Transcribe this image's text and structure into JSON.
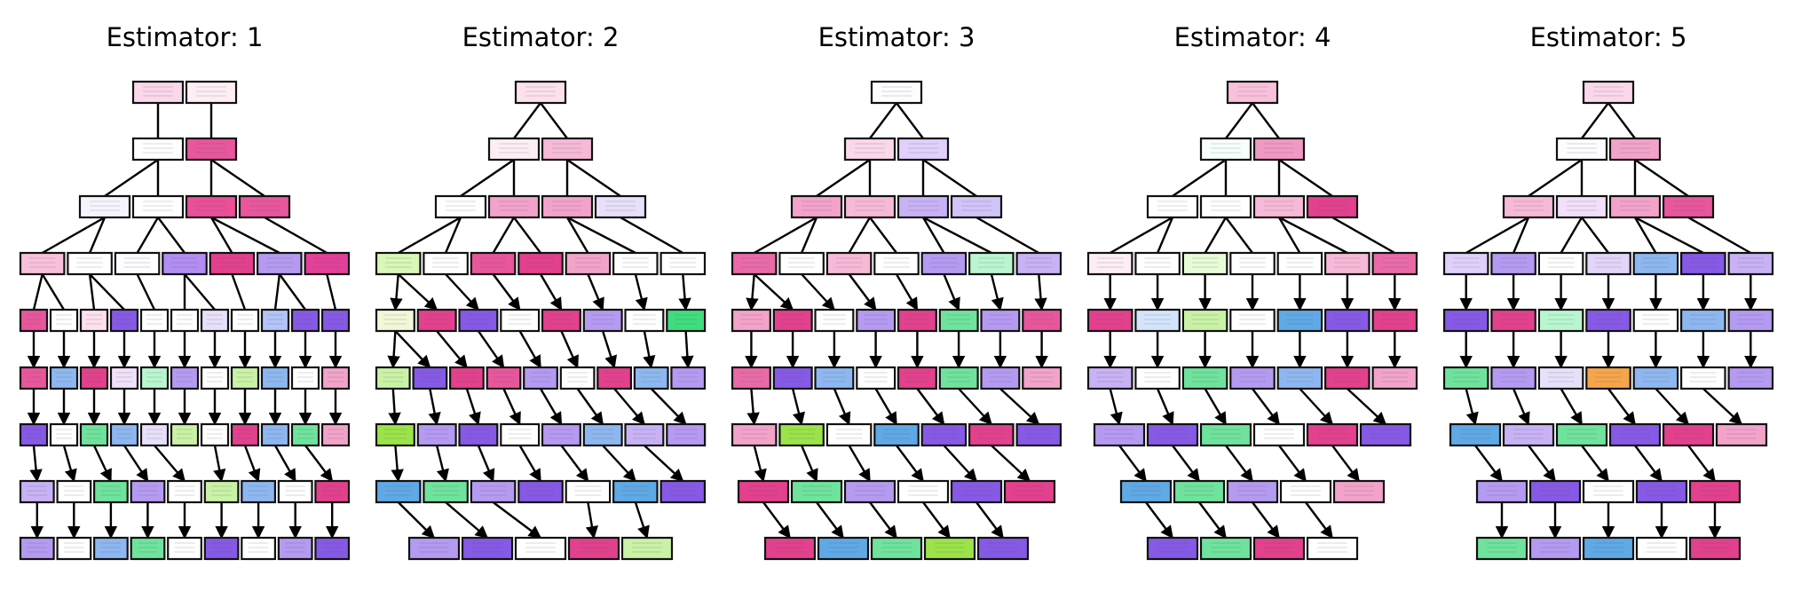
{
  "figure": {
    "panels": [
      {
        "title": "Estimator: 1",
        "levels": [
          {
            "nodes": [
              "#fad7ea",
              "#fdeef6"
            ],
            "edges": "lines"
          },
          {
            "nodes": [
              "#ffffff",
              "#e8569c"
            ],
            "edges": "lines"
          },
          {
            "nodes": [
              "#f7f4fd",
              "#ffffff",
              "#ea4f98",
              "#e8569c"
            ],
            "edges": "lines"
          },
          {
            "nodes": [
              "#f9c0dc",
              "#ffffff",
              "#fdfcff",
              "#b28df2",
              "#e3408e",
              "#b59af2",
              "#e3409a"
            ],
            "edges": "lines"
          },
          {
            "nodes": [
              "#e8569c",
              "#ffffff",
              "#fde0ee",
              "#8659e6",
              "#ffffff",
              "#ffffff",
              "#e8e0fb",
              "#ffffff",
              "#b2c4f8",
              "#8659e6",
              "#8659e6"
            ],
            "edges": "arrows"
          },
          {
            "nodes": [
              "#e8569c",
              "#8eb7f1",
              "#e3408e",
              "#f0e0fa",
              "#b9f6d0",
              "#b59af2",
              "#ffffff",
              "#c9f2a6",
              "#8eb7f1",
              "#ffffff",
              "#f3a3ca"
            ],
            "edges": "arrows"
          },
          {
            "nodes": [
              "#8659e6",
              "#ffffff",
              "#6fe39d",
              "#8eb7f1",
              "#e8e0fb",
              "#c9f2a6",
              "#ffffff",
              "#e3408e",
              "#8eb7f1",
              "#6fe39d",
              "#f3a3ca"
            ],
            "edges": "arrows"
          },
          {
            "nodes": [
              "#c8b2f5",
              "#ffffff",
              "#6fe39d",
              "#b59af2",
              "#ffffff",
              "#c9f2a6",
              "#8eb7f1",
              "#ffffff",
              "#e3408e"
            ],
            "edges": "arrows"
          },
          {
            "nodes": [
              "#b59af2",
              "#ffffff",
              "#8eb7f1",
              "#6fe39d",
              "#ffffff",
              "#8659e6",
              "#ffffff",
              "#b59af2",
              "#8659e6"
            ],
            "edges": "none"
          }
        ]
      },
      {
        "title": "Estimator: 2",
        "levels": [
          {
            "nodes": [
              "#fde0ee"
            ],
            "edges": "lines"
          },
          {
            "nodes": [
              "#fdeef6",
              "#f7b9d8"
            ],
            "edges": "lines"
          },
          {
            "nodes": [
              "#ffffff",
              "#f3a3ca",
              "#f3a3ca",
              "#e8e0fb"
            ],
            "edges": "lines"
          },
          {
            "nodes": [
              "#d9f7b7",
              "#ffffff",
              "#e8569c",
              "#e3408e",
              "#f3a3ca",
              "#ffffff",
              "#ffffff"
            ],
            "edges": "arrows"
          },
          {
            "nodes": [
              "#f0f8d8",
              "#e3408e",
              "#8659e6",
              "#ffffff",
              "#e3408e",
              "#b59af2",
              "#ffffff",
              "#3fdd7d"
            ],
            "edges": "arrows"
          },
          {
            "nodes": [
              "#c9f2a6",
              "#8659e6",
              "#e3408e",
              "#e8569c",
              "#b59af2",
              "#ffffff",
              "#e3408e",
              "#8eb7f1",
              "#b59af2"
            ],
            "edges": "arrows"
          },
          {
            "nodes": [
              "#9ce34a",
              "#b59af2",
              "#8659e6",
              "#ffffff",
              "#b59af2",
              "#8eb7f1",
              "#c8b2f5",
              "#b59af2"
            ],
            "edges": "arrows"
          },
          {
            "nodes": [
              "#5fa9e6",
              "#6fe39d",
              "#b59af2",
              "#8659e6",
              "#ffffff",
              "#5fa9e6",
              "#8659e6"
            ],
            "edges": "arrows"
          },
          {
            "nodes": [
              "#b59af2",
              "#8659e6",
              "#ffffff",
              "#e3408e",
              "#c9f2a6"
            ],
            "edges": "none"
          }
        ]
      },
      {
        "title": "Estimator: 3",
        "levels": [
          {
            "nodes": [
              "#fdfcff"
            ],
            "edges": "lines"
          },
          {
            "nodes": [
              "#fad7ea",
              "#e0d0fb"
            ],
            "edges": "lines"
          },
          {
            "nodes": [
              "#f3a3ca",
              "#f7b9d8",
              "#c8b2f5",
              "#d0c4f8"
            ],
            "edges": "lines"
          },
          {
            "nodes": [
              "#ea6aa8",
              "#ffffff",
              "#f7b9d8",
              "#ffffff",
              "#b59af2",
              "#b9f6d0",
              "#c8b2f5"
            ],
            "edges": "arrows"
          },
          {
            "nodes": [
              "#f3a3ca",
              "#e3408e",
              "#ffffff",
              "#b59af2",
              "#e3408e",
              "#6fe39d",
              "#b59af2",
              "#e8569c"
            ],
            "edges": "arrows"
          },
          {
            "nodes": [
              "#ea6aa8",
              "#8659e6",
              "#8eb7f1",
              "#ffffff",
              "#e3408e",
              "#6fe39d",
              "#b59af2",
              "#f3a3ca"
            ],
            "edges": "arrows"
          },
          {
            "nodes": [
              "#f3a3ca",
              "#9ce34a",
              "#ffffff",
              "#5fa9e6",
              "#8659e6",
              "#e3408e",
              "#8659e6"
            ],
            "edges": "arrows"
          },
          {
            "nodes": [
              "#e3408e",
              "#6fe39d",
              "#b59af2",
              "#ffffff",
              "#8659e6",
              "#e3408e"
            ],
            "edges": "arrows"
          },
          {
            "nodes": [
              "#e3408e",
              "#5fa9e6",
              "#6fe39d",
              "#9ce34a",
              "#8659e6"
            ],
            "edges": "none"
          }
        ]
      },
      {
        "title": "Estimator: 4",
        "levels": [
          {
            "nodes": [
              "#f9c0dc"
            ],
            "edges": "lines"
          },
          {
            "nodes": [
              "#f7fffb",
              "#f099c4"
            ],
            "edges": "lines"
          },
          {
            "nodes": [
              "#ffffff",
              "#ffffff",
              "#f7b9d8",
              "#e3408e"
            ],
            "edges": "lines"
          },
          {
            "nodes": [
              "#fdeef6",
              "#ffffff",
              "#e8fbd8",
              "#ffffff",
              "#ffffff",
              "#f7b9d8",
              "#ea6aa8"
            ],
            "edges": "arrows"
          },
          {
            "nodes": [
              "#e3408e",
              "#d4e5fb",
              "#c9f2a6",
              "#ffffff",
              "#5fa9e6",
              "#8659e6",
              "#e3408e"
            ],
            "edges": "arrows"
          },
          {
            "nodes": [
              "#c8b2f5",
              "#ffffff",
              "#6fe39d",
              "#b59af2",
              "#8eb7f1",
              "#e3408e",
              "#f3a3ca"
            ],
            "edges": "arrows"
          },
          {
            "nodes": [
              "#b59af2",
              "#8659e6",
              "#6fe39d",
              "#ffffff",
              "#e3408e",
              "#8659e6"
            ],
            "edges": "arrows"
          },
          {
            "nodes": [
              "#5fa9e6",
              "#6fe39d",
              "#b59af2",
              "#ffffff",
              "#f3a3ca"
            ],
            "edges": "arrows"
          },
          {
            "nodes": [
              "#8659e6",
              "#6fe39d",
              "#e3408e",
              "#ffffff"
            ],
            "edges": "none"
          }
        ]
      },
      {
        "title": "Estimator: 5",
        "levels": [
          {
            "nodes": [
              "#fad7ea"
            ],
            "edges": "lines"
          },
          {
            "nodes": [
              "#fdfcff",
              "#f3a3ca"
            ],
            "edges": "lines"
          },
          {
            "nodes": [
              "#f7b9d8",
              "#f0e0fa",
              "#f3a3ca",
              "#e8569c"
            ],
            "edges": "lines"
          },
          {
            "nodes": [
              "#e0d0fb",
              "#b59af2",
              "#ffffff",
              "#e3d4fa",
              "#8eb7f1",
              "#8659e6",
              "#c8b2f5"
            ],
            "edges": "arrows"
          },
          {
            "nodes": [
              "#8659e6",
              "#e3408e",
              "#b9f6d0",
              "#8659e6",
              "#ffffff",
              "#8eb7f1",
              "#b59af2"
            ],
            "edges": "arrows"
          },
          {
            "nodes": [
              "#6fe39d",
              "#b59af2",
              "#e8e0fb",
              "#f5a64a",
              "#8eb7f1",
              "#ffffff",
              "#b59af2"
            ],
            "edges": "arrows"
          },
          {
            "nodes": [
              "#5fa9e6",
              "#c8b2f5",
              "#6fe39d",
              "#8659e6",
              "#e3408e",
              "#f3a3ca"
            ],
            "edges": "arrows"
          },
          {
            "nodes": [
              "#b59af2",
              "#8659e6",
              "#ffffff",
              "#8659e6",
              "#e3408e"
            ],
            "edges": "arrows"
          },
          {
            "nodes": [
              "#6fe39d",
              "#b59af2",
              "#5fa9e6",
              "#ffffff",
              "#e3408e"
            ],
            "edges": "none"
          }
        ]
      }
    ]
  }
}
